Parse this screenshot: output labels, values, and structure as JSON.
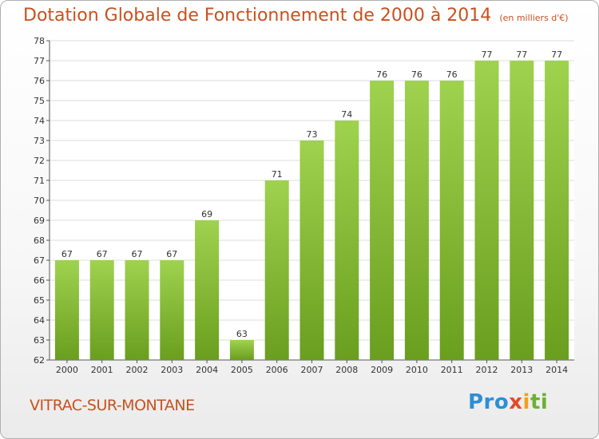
{
  "title": "Dotation Globale de Fonctionnement de 2000 à 2014",
  "subtitle": "(en milliers d'€)",
  "commune": "VITRAC-SUR-MONTANE",
  "logo": {
    "part1": "Pro",
    "part2": "x",
    "part3": "i",
    "part4": "ti"
  },
  "colors": {
    "bar_light": "#9fd24e",
    "bar_dark": "#6a9e1e",
    "title": "#c8511f",
    "grid": "#dddddd"
  },
  "chart_data": {
    "type": "bar",
    "title": "Dotation Globale de Fonctionnement de 2000 à 2014",
    "subtitle": "(en milliers d'€)",
    "xlabel": "",
    "ylabel": "",
    "categories": [
      "2000",
      "2001",
      "2002",
      "2003",
      "2004",
      "2005",
      "2006",
      "2007",
      "2008",
      "2009",
      "2010",
      "2011",
      "2012",
      "2013",
      "2014"
    ],
    "values": [
      67,
      67,
      67,
      67,
      69,
      63,
      71,
      73,
      74,
      76,
      76,
      76,
      77,
      77,
      77
    ],
    "data_labels": [
      "67",
      "67",
      "67",
      "67",
      "69",
      "63",
      "71",
      "73",
      "74",
      "76",
      "76",
      "76",
      "77",
      "77",
      "77"
    ],
    "ylim": [
      62,
      78
    ],
    "yticks": [
      "62",
      "63",
      "64",
      "65",
      "66",
      "67",
      "68",
      "69",
      "70",
      "71",
      "72",
      "73",
      "74",
      "75",
      "76",
      "77",
      "78"
    ],
    "grid": true,
    "legend": "none"
  }
}
